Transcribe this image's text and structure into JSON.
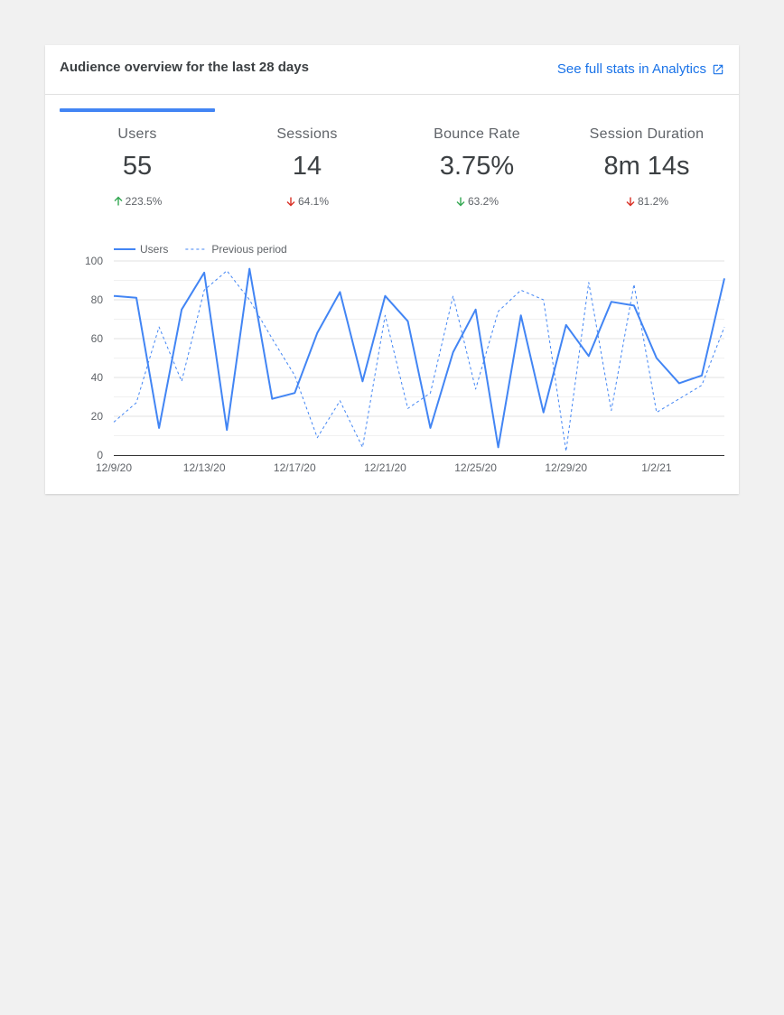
{
  "header": {
    "title": "Audience overview for the last 28 days",
    "link_label": "See full stats in Analytics",
    "link_icon": "open-in-new-icon"
  },
  "colors": {
    "accent": "#4285f4",
    "link": "#1a73e8",
    "positive": "#34a853",
    "negative": "#d93025"
  },
  "metrics": [
    {
      "label": "Users",
      "value": "55",
      "change": "223.5%",
      "direction": "up",
      "trend": "positive"
    },
    {
      "label": "Sessions",
      "value": "14",
      "change": "64.1%",
      "direction": "down",
      "trend": "negative"
    },
    {
      "label": "Bounce Rate",
      "value": "3.75%",
      "change": "63.2%",
      "direction": "down",
      "trend": "positive"
    },
    {
      "label": "Session Duration",
      "value": "8m 14s",
      "change": "81.2%",
      "direction": "down",
      "trend": "negative"
    }
  ],
  "chart_data": {
    "type": "line",
    "title": "",
    "xlabel": "",
    "ylabel": "",
    "ylim": [
      0,
      100
    ],
    "yticks": [
      0,
      20,
      40,
      60,
      80,
      100
    ],
    "x": [
      "12/9/20",
      "12/10/20",
      "12/11/20",
      "12/12/20",
      "12/13/20",
      "12/14/20",
      "12/15/20",
      "12/16/20",
      "12/17/20",
      "12/18/20",
      "12/19/20",
      "12/20/20",
      "12/21/20",
      "12/22/20",
      "12/23/20",
      "12/24/20",
      "12/25/20",
      "12/26/20",
      "12/27/20",
      "12/28/20",
      "12/29/20",
      "12/30/20",
      "12/31/20",
      "1/1/21",
      "1/2/21",
      "1/3/21",
      "1/4/21",
      "1/5/21"
    ],
    "xticks": [
      {
        "index": 0,
        "label": "12/9/20"
      },
      {
        "index": 4,
        "label": "12/13/20"
      },
      {
        "index": 8,
        "label": "12/17/20"
      },
      {
        "index": 12,
        "label": "12/21/20"
      },
      {
        "index": 16,
        "label": "12/25/20"
      },
      {
        "index": 20,
        "label": "12/29/20"
      },
      {
        "index": 24,
        "label": "1/2/21"
      }
    ],
    "legend": "top-left",
    "series": [
      {
        "name": "Users",
        "style": "solid",
        "values": [
          82,
          81,
          14,
          75,
          94,
          13,
          96,
          29,
          32,
          63,
          84,
          38,
          82,
          69,
          14,
          53,
          75,
          4,
          72,
          22,
          67,
          51,
          79,
          77,
          50,
          37,
          41,
          91
        ]
      },
      {
        "name": "Previous period",
        "style": "dashed",
        "values": [
          17,
          27,
          66,
          38,
          85,
          95,
          80,
          60,
          41,
          9,
          28,
          4,
          72,
          24,
          32,
          82,
          34,
          74,
          85,
          80,
          2,
          89,
          23,
          88,
          22,
          29,
          36,
          66
        ]
      }
    ]
  }
}
